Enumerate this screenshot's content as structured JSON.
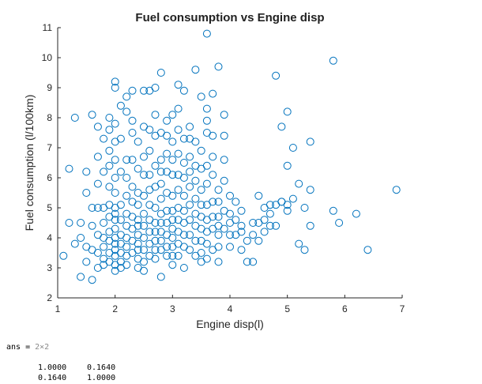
{
  "chart_data": {
    "type": "scatter",
    "title": "Fuel consumption vs Engine disp",
    "xlabel": "Engine disp(l)",
    "ylabel": "Fuel consumption (l/100km)",
    "xlim": [
      1,
      7
    ],
    "ylim": [
      2,
      11
    ],
    "xticks": [
      "1",
      "2",
      "3",
      "4",
      "5",
      "6",
      "7"
    ],
    "yticks": [
      "2",
      "3",
      "4",
      "5",
      "6",
      "7",
      "8",
      "9",
      "10",
      "11"
    ],
    "grid": false,
    "marker": "open-circle",
    "marker_color": "#0072BD",
    "x": [
      1.1,
      1.2,
      1.2,
      1.3,
      1.3,
      1.4,
      1.4,
      1.4,
      1.5,
      1.5,
      1.5,
      1.5,
      1.6,
      1.6,
      1.6,
      1.6,
      1.6,
      1.7,
      1.7,
      1.7,
      1.7,
      1.7,
      1.7,
      1.7,
      1.8,
      1.8,
      1.8,
      1.8,
      1.8,
      1.8,
      1.8,
      1.8,
      1.9,
      1.9,
      1.9,
      1.9,
      1.9,
      1.9,
      1.9,
      1.9,
      1.9,
      1.9,
      1.9,
      2.0,
      2.0,
      2.0,
      2.0,
      2.0,
      2.0,
      2.0,
      2.0,
      2.0,
      2.0,
      2.0,
      2.0,
      2.0,
      2.0,
      2.0,
      2.0,
      2.0,
      2.1,
      2.1,
      2.1,
      2.1,
      2.1,
      2.1,
      2.1,
      2.1,
      2.1,
      2.1,
      2.2,
      2.2,
      2.2,
      2.2,
      2.2,
      2.2,
      2.2,
      2.2,
      2.2,
      2.2,
      2.2,
      2.3,
      2.3,
      2.3,
      2.3,
      2.3,
      2.3,
      2.3,
      2.3,
      2.3,
      2.3,
      2.4,
      2.4,
      2.4,
      2.4,
      2.4,
      2.4,
      2.4,
      2.4,
      2.4,
      2.4,
      2.4,
      2.5,
      2.5,
      2.5,
      2.5,
      2.5,
      2.5,
      2.5,
      2.5,
      2.5,
      2.5,
      2.5,
      2.6,
      2.6,
      2.6,
      2.6,
      2.6,
      2.6,
      2.6,
      2.6,
      2.6,
      2.6,
      2.7,
      2.7,
      2.7,
      2.7,
      2.7,
      2.7,
      2.7,
      2.7,
      2.7,
      2.7,
      2.7,
      2.8,
      2.8,
      2.8,
      2.8,
      2.8,
      2.8,
      2.8,
      2.8,
      2.8,
      2.8,
      2.8,
      2.8,
      2.9,
      2.9,
      2.9,
      2.9,
      2.9,
      2.9,
      2.9,
      2.9,
      2.9,
      2.9,
      3.0,
      3.0,
      3.0,
      3.0,
      3.0,
      3.0,
      3.0,
      3.0,
      3.0,
      3.0,
      3.0,
      3.0,
      3.1,
      3.1,
      3.1,
      3.1,
      3.1,
      3.1,
      3.1,
      3.1,
      3.1,
      3.1,
      3.1,
      3.2,
      3.2,
      3.2,
      3.2,
      3.2,
      3.2,
      3.2,
      3.2,
      3.2,
      3.2,
      3.3,
      3.3,
      3.3,
      3.3,
      3.3,
      3.3,
      3.3,
      3.3,
      3.3,
      3.4,
      3.4,
      3.4,
      3.4,
      3.4,
      3.4,
      3.4,
      3.4,
      3.4,
      3.5,
      3.5,
      3.5,
      3.5,
      3.5,
      3.5,
      3.5,
      3.5,
      3.5,
      3.5,
      3.6,
      3.6,
      3.6,
      3.6,
      3.6,
      3.6,
      3.6,
      3.6,
      3.6,
      3.6,
      3.6,
      3.7,
      3.7,
      3.7,
      3.7,
      3.7,
      3.7,
      3.7,
      3.7,
      3.8,
      3.8,
      3.8,
      3.8,
      3.8,
      3.8,
      3.8,
      3.8,
      3.9,
      3.9,
      3.9,
      3.9,
      3.9,
      3.9,
      4.0,
      4.0,
      4.0,
      4.0,
      4.0,
      4.1,
      4.1,
      4.1,
      4.2,
      4.2,
      4.2,
      4.2,
      4.3,
      4.3,
      4.4,
      4.4,
      4.4,
      4.5,
      4.5,
      4.5,
      4.6,
      4.6,
      4.6,
      4.7,
      4.7,
      4.7,
      4.8,
      4.8,
      4.8,
      4.9,
      4.9,
      4.9,
      5.0,
      5.0,
      5.0,
      5.0,
      5.1,
      5.1,
      5.2,
      5.2,
      5.3,
      5.3,
      5.4,
      5.4,
      5.4,
      5.8,
      5.8,
      5.9,
      6.2,
      6.4,
      6.9
    ],
    "y": [
      3.4,
      6.3,
      4.5,
      8.0,
      3.8,
      2.7,
      4.5,
      4.0,
      6.2,
      5.5,
      3.7,
      3.2,
      8.1,
      5.0,
      4.4,
      3.6,
      2.6,
      7.7,
      6.7,
      5.8,
      5.0,
      4.1,
      3.5,
      3.0,
      7.3,
      6.2,
      5.0,
      4.5,
      4.0,
      3.7,
      3.3,
      3.1,
      8.0,
      7.6,
      6.9,
      6.4,
      5.7,
      5.1,
      4.7,
      4.2,
      3.9,
      3.5,
      3.2,
      9.2,
      9.0,
      7.8,
      7.2,
      6.6,
      6.0,
      5.5,
      5.0,
      4.6,
      4.3,
      4.0,
      3.8,
      3.6,
      3.4,
      3.1,
      2.9,
      4.8,
      8.4,
      7.3,
      6.2,
      5.1,
      4.6,
      4.1,
      3.8,
      3.5,
      3.2,
      3.0,
      8.7,
      8.2,
      6.6,
      6.0,
      5.4,
      4.8,
      4.4,
      4.0,
      3.7,
      3.4,
      3.1,
      8.9,
      7.9,
      7.5,
      6.6,
      5.7,
      5.2,
      4.7,
      4.3,
      3.9,
      3.5,
      6.3,
      5.5,
      5.1,
      4.6,
      4.4,
      4.1,
      3.8,
      3.6,
      3.3,
      3.0,
      7.2,
      8.9,
      7.7,
      6.7,
      6.1,
      5.4,
      4.8,
      4.4,
      4.0,
      3.6,
      3.2,
      2.9,
      8.9,
      7.6,
      6.9,
      6.1,
      5.6,
      5.1,
      4.6,
      4.2,
      3.8,
      3.4,
      9.0,
      8.1,
      7.4,
      6.4,
      5.7,
      5.0,
      4.5,
      4.2,
      3.9,
      3.6,
      3.3,
      9.5,
      7.5,
      6.6,
      6.2,
      5.8,
      5.3,
      4.8,
      4.5,
      4.2,
      3.9,
      3.6,
      2.7,
      7.9,
      7.4,
      6.8,
      6.2,
      5.5,
      4.9,
      4.5,
      4.1,
      3.7,
      3.4,
      8.1,
      7.2,
      6.6,
      6.1,
      5.4,
      4.9,
      4.6,
      4.3,
      4.0,
      3.7,
      3.4,
      3.1,
      9.1,
      8.3,
      7.6,
      6.8,
      6.1,
      5.6,
      5.0,
      4.6,
      4.2,
      3.8,
      3.4,
      8.9,
      7.3,
      6.5,
      6.0,
      5.4,
      4.9,
      4.5,
      4.1,
      3.7,
      3.0,
      7.7,
      7.3,
      6.7,
      6.2,
      5.7,
      5.1,
      4.6,
      4.1,
      3.6,
      9.6,
      7.2,
      6.4,
      5.9,
      5.3,
      4.8,
      4.4,
      3.9,
      3.4,
      8.7,
      6.9,
      6.3,
      5.6,
      5.1,
      4.7,
      4.3,
      3.9,
      3.5,
      3.2,
      10.8,
      8.3,
      7.9,
      7.5,
      6.4,
      5.8,
      5.1,
      4.6,
      4.2,
      3.8,
      3.3,
      8.8,
      7.4,
      6.7,
      6.1,
      5.2,
      4.7,
      4.3,
      3.6,
      9.7,
      5.6,
      5.2,
      4.7,
      4.4,
      4.1,
      3.7,
      3.2,
      8.1,
      7.4,
      6.6,
      5.9,
      4.9,
      4.3,
      5.4,
      4.8,
      4.5,
      4.1,
      3.7,
      5.2,
      4.6,
      4.1,
      4.9,
      4.4,
      4.2,
      3.6,
      3.9,
      3.2,
      4.5,
      4.1,
      3.2,
      5.4,
      4.5,
      3.9,
      5.0,
      4.6,
      4.2,
      5.1,
      4.8,
      4.4,
      9.4,
      5.1,
      4.4,
      7.7,
      5.2,
      5.2,
      8.2,
      6.4,
      5.1,
      4.9,
      7.0,
      5.3,
      5.8,
      3.8,
      5.0,
      3.6,
      7.2,
      5.6,
      4.4,
      9.9,
      4.9,
      4.5,
      4.8,
      3.6,
      5.6
    ]
  },
  "console": {
    "ans_label": "ans = ",
    "ans_dims": "2×2",
    "matrix": [
      [
        "1.0000",
        "0.1640"
      ],
      [
        "0.1640",
        "1.0000"
      ]
    ]
  }
}
